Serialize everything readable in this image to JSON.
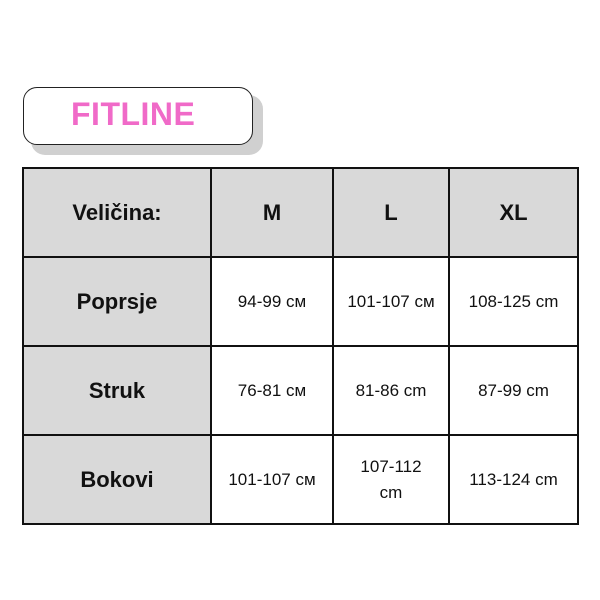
{
  "brand": {
    "title": "FITLINE",
    "color": "#f06ac8"
  },
  "table": {
    "header": [
      "Veličina:",
      "M",
      "L",
      "XL"
    ],
    "rows": [
      {
        "label": "Poprsje",
        "values": [
          "94-99 см",
          "101-107 см",
          "108-125 cm"
        ]
      },
      {
        "label": "Struk",
        "values": [
          "76-81 см",
          "81-86 cm",
          "87-99 cm"
        ]
      },
      {
        "label": "Bokovi",
        "values": [
          "101-107 см",
          "107-112 cm",
          "113-124 cm"
        ]
      }
    ]
  }
}
